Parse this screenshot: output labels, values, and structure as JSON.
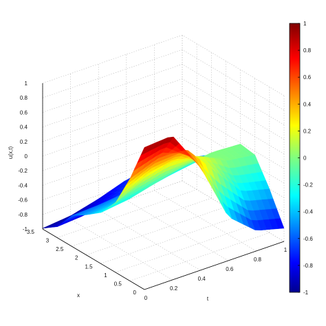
{
  "chart_data": {
    "type": "surface",
    "title": "",
    "xlabel": "x",
    "ylabel": "t",
    "zlabel": "u(x,t)",
    "x_range": [
      0,
      3.5
    ],
    "t_range": [
      0,
      1
    ],
    "z_range": [
      -1,
      1
    ],
    "x_ticks": [
      "0",
      "0.5",
      "1",
      "1.5",
      "2",
      "2.5",
      "3",
      "3.5"
    ],
    "t_ticks": [
      "0",
      "0.2",
      "0.4",
      "0.6",
      "0.8",
      "1"
    ],
    "z_ticks": [
      "-1",
      "-0.8",
      "-0.6",
      "-0.4",
      "-0.2",
      "0",
      "0.2",
      "0.4",
      "0.6",
      "0.8",
      "1"
    ],
    "grid": true,
    "colormap": "jet",
    "colorbar": {
      "position": "right",
      "range": [
        -1,
        1
      ],
      "ticks": [
        "-1",
        "-0.8",
        "-0.6",
        "-0.4",
        "-0.2",
        "0",
        "0.2",
        "0.4",
        "0.6",
        "0.8",
        "1"
      ]
    },
    "surface": {
      "x_samples": [
        0,
        0.5,
        1.0,
        1.5,
        2.0,
        2.5,
        3.0,
        3.5
      ],
      "t_samples": [
        0,
        0.2,
        0.4,
        0.6,
        0.8,
        1.0
      ],
      "u": [
        [
          0.95,
          0.98,
          0.42,
          -0.4,
          -0.72,
          -0.82
        ],
        [
          0.4,
          0.55,
          0.55,
          0.12,
          -0.3,
          -0.4
        ],
        [
          -0.05,
          0.15,
          0.25,
          0.2,
          0.0,
          -0.05
        ],
        [
          -0.3,
          -0.25,
          -0.15,
          -0.05,
          0.0,
          -0.02
        ],
        [
          -0.45,
          -0.42,
          -0.38,
          -0.3,
          -0.24,
          -0.2
        ],
        [
          -0.58,
          -0.56,
          -0.52,
          -0.48,
          -0.44,
          -0.4
        ],
        [
          -0.85,
          -0.82,
          -0.72,
          -0.62,
          -0.58,
          -0.55
        ],
        [
          -0.99,
          -0.95,
          -0.85,
          -0.72,
          -0.68,
          -0.65
        ]
      ]
    }
  }
}
